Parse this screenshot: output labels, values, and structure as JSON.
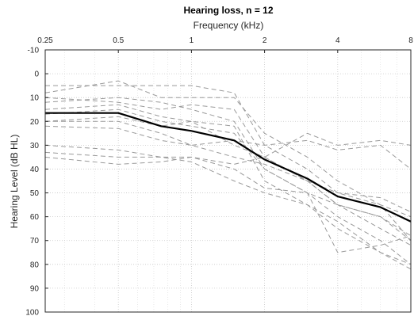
{
  "chart_data": {
    "type": "line",
    "title": "Hearing loss, n = 12",
    "xlabel": "Frequency (kHz)",
    "ylabel": "Hearing Level (dB HL)",
    "x_axis_position": "top",
    "x_scale": "log2",
    "y_reversed": true,
    "grid": true,
    "xlim": [
      0.25,
      8
    ],
    "ylim": [
      -10,
      100
    ],
    "x_ticks": [
      0.25,
      0.5,
      1,
      2,
      4,
      8
    ],
    "x_tick_labels": [
      "0.25",
      "0.5",
      "1",
      "2",
      "4",
      "8"
    ],
    "y_ticks": [
      -10,
      0,
      10,
      20,
      30,
      40,
      50,
      60,
      70,
      80,
      90,
      100
    ],
    "y_tick_labels": [
      "-10",
      "0",
      "10",
      "20",
      "30",
      "40",
      "50",
      "60",
      "70",
      "80",
      "90",
      "100"
    ],
    "individual_style": {
      "color": "#999999",
      "dash": "dashed"
    },
    "mean_style": {
      "color": "#000000",
      "dash": "solid"
    },
    "individual_series": [
      {
        "x": [
          0.25,
          0.5,
          0.75,
          1,
          1.5,
          2,
          3,
          4,
          6,
          8
        ],
        "y": [
          5,
          5,
          5,
          5,
          8,
          30,
          40,
          50,
          55,
          60
        ]
      },
      {
        "x": [
          0.25,
          0.5,
          0.75,
          1,
          1.5,
          2,
          3,
          4,
          6,
          8
        ],
        "y": [
          8,
          3,
          10,
          10,
          10,
          25,
          35,
          45,
          55,
          70
        ]
      },
      {
        "x": [
          0.25,
          0.5,
          0.75,
          1,
          1.5,
          2,
          3,
          4,
          6,
          8
        ],
        "y": [
          10,
          12,
          15,
          13,
          15,
          35,
          45,
          55,
          65,
          72
        ]
      },
      {
        "x": [
          0.25,
          0.5,
          0.75,
          1,
          1.5,
          2,
          3,
          4,
          6,
          8
        ],
        "y": [
          12,
          10,
          12,
          15,
          20,
          40,
          50,
          55,
          60,
          68
        ]
      },
      {
        "x": [
          0.25,
          0.5,
          0.75,
          1,
          1.5,
          2,
          3,
          4,
          6,
          8
        ],
        "y": [
          15,
          13,
          18,
          20,
          22,
          45,
          55,
          62,
          75,
          82
        ]
      },
      {
        "x": [
          0.25,
          0.5,
          0.75,
          1,
          1.5,
          2,
          3,
          4,
          6,
          8
        ],
        "y": [
          17,
          15,
          20,
          22,
          25,
          40,
          50,
          60,
          70,
          80
        ]
      },
      {
        "x": [
          0.25,
          0.5,
          0.75,
          1,
          1.5,
          2,
          3,
          4,
          6,
          8
        ],
        "y": [
          20,
          18,
          22,
          20,
          30,
          35,
          45,
          55,
          60,
          70
        ]
      },
      {
        "x": [
          0.25,
          0.5,
          0.75,
          1,
          1.5,
          2,
          3,
          4,
          6,
          8
        ],
        "y": [
          20,
          20,
          25,
          30,
          28,
          30,
          28,
          32,
          30,
          40
        ]
      },
      {
        "x": [
          0.25,
          0.5,
          0.75,
          1,
          1.5,
          2,
          3,
          4,
          6,
          8
        ],
        "y": [
          22,
          23,
          28,
          30,
          35,
          38,
          45,
          50,
          52,
          58
        ]
      },
      {
        "x": [
          0.25,
          0.5,
          0.75,
          1,
          1.5,
          2,
          3,
          4,
          6,
          8
        ],
        "y": [
          30,
          32,
          35,
          35,
          38,
          35,
          25,
          30,
          28,
          30
        ]
      },
      {
        "x": [
          0.25,
          0.5,
          0.75,
          1,
          1.5,
          2,
          3,
          4,
          6,
          8
        ],
        "y": [
          33,
          35,
          35,
          37,
          45,
          50,
          55,
          65,
          75,
          80
        ]
      },
      {
        "x": [
          0.25,
          0.5,
          0.75,
          1,
          1.5,
          2,
          3,
          4,
          6,
          8
        ],
        "y": [
          35,
          38,
          37,
          35,
          40,
          48,
          50,
          75,
          72,
          68
        ]
      }
    ],
    "mean_series": {
      "x": [
        0.25,
        0.5,
        0.75,
        1,
        1.5,
        2,
        3,
        4,
        6,
        8
      ],
      "y": [
        16.5,
        16.5,
        22,
        24,
        28,
        36,
        44,
        51.5,
        56,
        62
      ]
    }
  }
}
